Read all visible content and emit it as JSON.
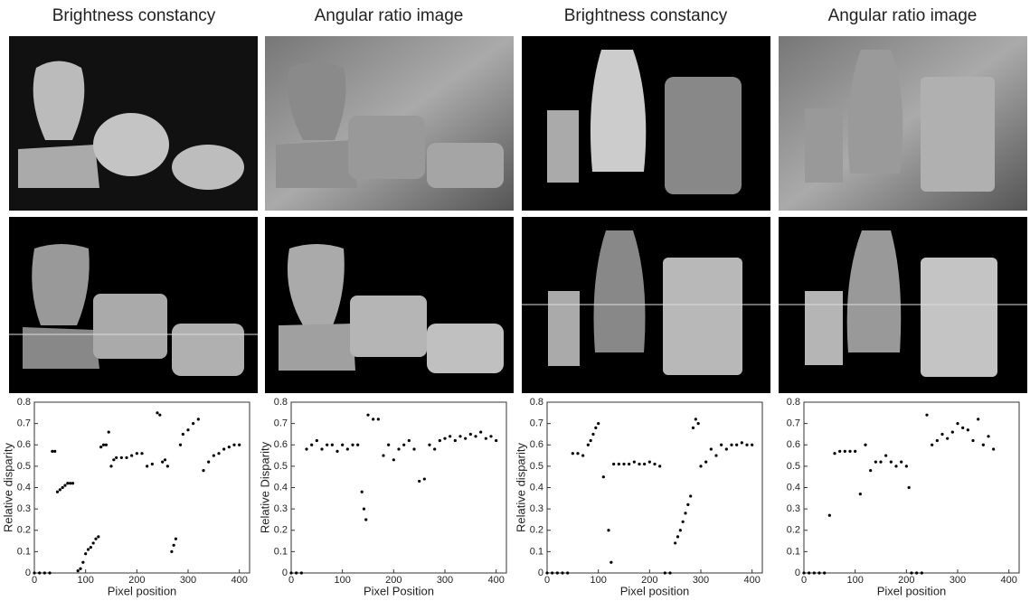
{
  "columns": [
    {
      "title": "Brightness constancy"
    },
    {
      "title": "Angular ratio image"
    },
    {
      "title": "Brightness constancy"
    },
    {
      "title": "Angular ratio image"
    }
  ],
  "chart_data": [
    {
      "type": "scatter",
      "xlabel": "Pixel position",
      "ylabel": "Relative disparity",
      "color": "#000000",
      "xlim": [
        0,
        420
      ],
      "ylim": [
        0,
        0.8
      ],
      "xticks": [
        0,
        100,
        200,
        300,
        400
      ],
      "yticks": [
        0,
        0.1,
        0.2,
        0.3,
        0.4,
        0.5,
        0.6,
        0.7,
        0.8
      ],
      "x": [
        0,
        10,
        20,
        30,
        35,
        40,
        45,
        50,
        55,
        60,
        65,
        70,
        75,
        85,
        90,
        95,
        100,
        105,
        110,
        115,
        120,
        125,
        130,
        135,
        140,
        145,
        150,
        155,
        160,
        170,
        180,
        190,
        200,
        210,
        220,
        230,
        240,
        245,
        250,
        255,
        260,
        268,
        272,
        276,
        285,
        290,
        300,
        310,
        320,
        330,
        340,
        350,
        360,
        370,
        380,
        390,
        400
      ],
      "values": [
        0,
        0,
        0,
        0,
        0.57,
        0.57,
        0.38,
        0.39,
        0.4,
        0.41,
        0.42,
        0.42,
        0.42,
        0.01,
        0.02,
        0.05,
        0.09,
        0.11,
        0.12,
        0.14,
        0.16,
        0.17,
        0.59,
        0.6,
        0.6,
        0.66,
        0.5,
        0.53,
        0.54,
        0.54,
        0.54,
        0.55,
        0.56,
        0.56,
        0.5,
        0.51,
        0.75,
        0.74,
        0.52,
        0.53,
        0.5,
        0.1,
        0.13,
        0.16,
        0.6,
        0.65,
        0.67,
        0.7,
        0.72,
        0.48,
        0.52,
        0.55,
        0.56,
        0.58,
        0.59,
        0.6,
        0.6
      ]
    },
    {
      "type": "scatter",
      "xlabel": "Pixel Position",
      "ylabel": "Relative Disparity",
      "color": "#000000",
      "xlim": [
        0,
        420
      ],
      "ylim": [
        0,
        0.8
      ],
      "xticks": [
        0,
        100,
        200,
        300,
        400
      ],
      "yticks": [
        0,
        0.1,
        0.2,
        0.3,
        0.4,
        0.5,
        0.6,
        0.7,
        0.8
      ],
      "x": [
        0,
        10,
        20,
        30,
        40,
        50,
        60,
        70,
        80,
        90,
        100,
        110,
        120,
        130,
        138,
        142,
        146,
        150,
        160,
        170,
        180,
        190,
        200,
        210,
        220,
        230,
        240,
        250,
        260,
        270,
        280,
        290,
        300,
        310,
        320,
        330,
        340,
        350,
        360,
        370,
        380,
        390,
        400
      ],
      "values": [
        0,
        0,
        0,
        0.58,
        0.6,
        0.62,
        0.58,
        0.6,
        0.6,
        0.57,
        0.6,
        0.58,
        0.6,
        0.6,
        0.38,
        0.3,
        0.25,
        0.74,
        0.72,
        0.72,
        0.55,
        0.6,
        0.53,
        0.58,
        0.6,
        0.62,
        0.58,
        0.43,
        0.44,
        0.6,
        0.58,
        0.62,
        0.63,
        0.64,
        0.62,
        0.64,
        0.63,
        0.65,
        0.64,
        0.66,
        0.63,
        0.64,
        0.62
      ]
    },
    {
      "type": "scatter",
      "xlabel": "Pixel position",
      "ylabel": "Relative disparity",
      "color": "#000000",
      "xlim": [
        0,
        420
      ],
      "ylim": [
        0,
        0.8
      ],
      "xticks": [
        0,
        100,
        200,
        300,
        400
      ],
      "yticks": [
        0,
        0.1,
        0.2,
        0.3,
        0.4,
        0.5,
        0.6,
        0.7,
        0.8
      ],
      "x": [
        0,
        10,
        20,
        30,
        40,
        50,
        60,
        70,
        80,
        85,
        90,
        95,
        100,
        110,
        120,
        125,
        130,
        140,
        150,
        160,
        170,
        180,
        190,
        200,
        210,
        220,
        230,
        240,
        250,
        255,
        260,
        265,
        270,
        275,
        280,
        285,
        290,
        295,
        300,
        310,
        320,
        330,
        340,
        350,
        360,
        370,
        380,
        390,
        400
      ],
      "values": [
        0,
        0,
        0,
        0,
        0,
        0.56,
        0.56,
        0.55,
        0.6,
        0.62,
        0.65,
        0.68,
        0.7,
        0.45,
        0.2,
        0.05,
        0.51,
        0.51,
        0.51,
        0.51,
        0.52,
        0.51,
        0.51,
        0.52,
        0.51,
        0.5,
        0,
        0,
        0.14,
        0.17,
        0.2,
        0.24,
        0.28,
        0.32,
        0.36,
        0.68,
        0.72,
        0.7,
        0.5,
        0.52,
        0.58,
        0.55,
        0.6,
        0.58,
        0.6,
        0.6,
        0.61,
        0.6,
        0.6
      ]
    },
    {
      "type": "scatter",
      "xlabel": "Pixel position",
      "color": "#000000",
      "xlim": [
        0,
        420
      ],
      "ylim": [
        0,
        0.8
      ],
      "xticks": [
        0,
        100,
        200,
        300,
        400
      ],
      "yticks": [
        0,
        0.1,
        0.2,
        0.3,
        0.4,
        0.5,
        0.6,
        0.7,
        0.8
      ],
      "x": [
        0,
        10,
        20,
        30,
        40,
        50,
        60,
        70,
        80,
        90,
        100,
        110,
        120,
        130,
        140,
        150,
        160,
        170,
        180,
        190,
        200,
        205,
        210,
        220,
        230,
        240,
        250,
        260,
        270,
        280,
        290,
        300,
        310,
        320,
        330,
        340,
        350,
        360,
        370
      ],
      "values": [
        0,
        0,
        0,
        0,
        0,
        0.27,
        0.56,
        0.57,
        0.57,
        0.57,
        0.57,
        0.37,
        0.6,
        0.48,
        0.52,
        0.52,
        0.55,
        0.52,
        0.5,
        0.52,
        0.5,
        0.4,
        0,
        0,
        0,
        0.74,
        0.6,
        0.62,
        0.65,
        0.63,
        0.66,
        0.7,
        0.68,
        0.67,
        0.62,
        0.72,
        0.6,
        0.64,
        0.58
      ]
    }
  ]
}
